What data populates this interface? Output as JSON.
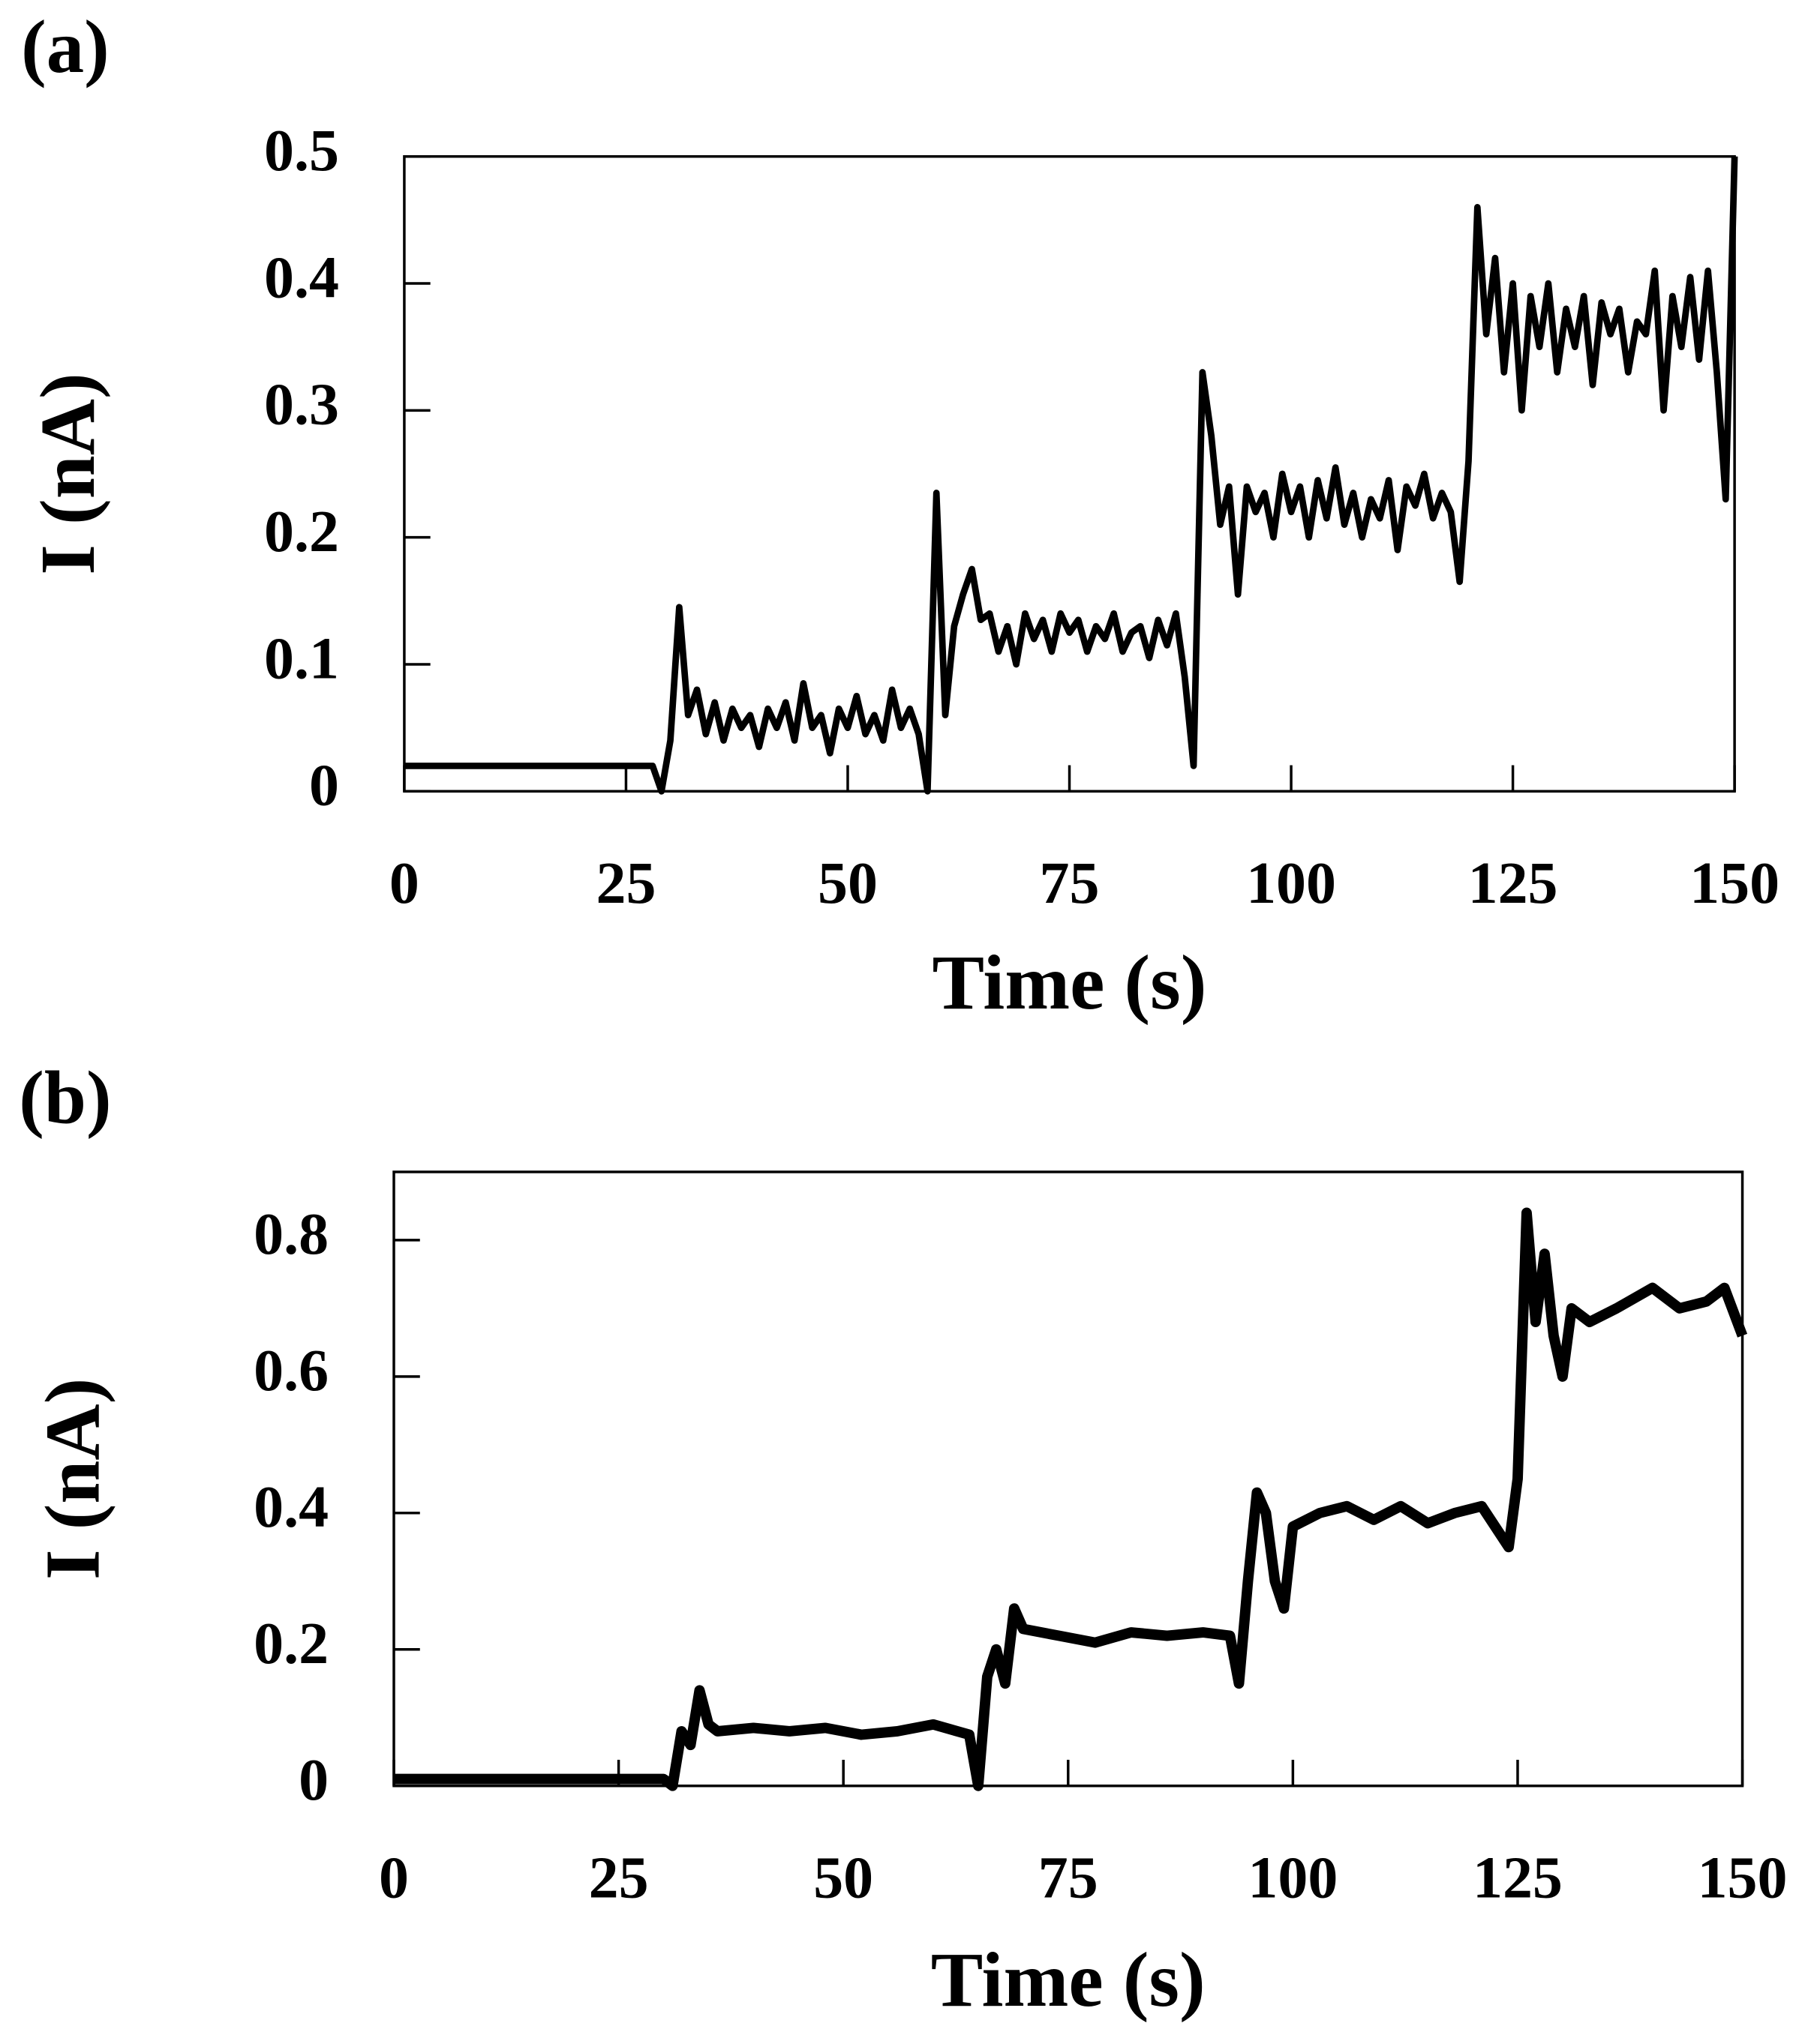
{
  "chart_data": [
    {
      "type": "line",
      "panel_label": "(a)",
      "x_label": "Time (s)",
      "y_label": "I (nA)",
      "xlim": [
        0,
        150
      ],
      "ylim": [
        0,
        0.5
      ],
      "xticks": [
        0,
        25,
        50,
        75,
        100,
        125,
        150
      ],
      "yticks": [
        0,
        0.1,
        0.2,
        0.3,
        0.4,
        0.5
      ],
      "color": "#000000",
      "x": [
        0,
        28,
        29,
        30,
        31,
        32,
        33,
        34,
        35,
        36,
        37,
        38,
        39,
        40,
        41,
        42,
        43,
        44,
        45,
        46,
        47,
        48,
        49,
        50,
        51,
        52,
        53,
        54,
        55,
        56,
        57,
        58,
        59,
        60,
        61,
        62,
        63,
        64,
        65,
        66,
        67,
        68,
        69,
        70,
        71,
        72,
        73,
        74,
        75,
        76,
        77,
        78,
        79,
        80,
        81,
        82,
        83,
        84,
        85,
        86,
        87,
        88,
        89,
        90,
        91,
        92,
        93,
        94,
        95,
        96,
        97,
        98,
        99,
        100,
        101,
        102,
        103,
        104,
        105,
        106,
        107,
        108,
        109,
        110,
        111,
        112,
        113,
        114,
        115,
        116,
        117,
        118,
        119,
        120,
        121,
        122,
        123,
        124,
        125,
        126,
        127,
        128,
        129,
        130,
        131,
        132,
        133,
        134,
        135,
        136,
        137,
        138,
        139,
        140,
        141,
        142,
        143,
        144,
        145,
        146,
        147,
        148,
        149,
        150
      ],
      "values": [
        0.02,
        0.02,
        0.0,
        0.04,
        0.145,
        0.06,
        0.08,
        0.045,
        0.07,
        0.04,
        0.065,
        0.05,
        0.06,
        0.035,
        0.065,
        0.05,
        0.07,
        0.04,
        0.085,
        0.05,
        0.06,
        0.03,
        0.065,
        0.05,
        0.075,
        0.045,
        0.06,
        0.04,
        0.08,
        0.05,
        0.065,
        0.045,
        0.0,
        0.235,
        0.06,
        0.13,
        0.155,
        0.175,
        0.135,
        0.14,
        0.11,
        0.13,
        0.1,
        0.14,
        0.12,
        0.135,
        0.11,
        0.14,
        0.125,
        0.135,
        0.11,
        0.13,
        0.12,
        0.14,
        0.11,
        0.125,
        0.13,
        0.105,
        0.135,
        0.115,
        0.14,
        0.09,
        0.02,
        0.33,
        0.28,
        0.21,
        0.24,
        0.155,
        0.24,
        0.22,
        0.235,
        0.2,
        0.25,
        0.22,
        0.24,
        0.2,
        0.245,
        0.215,
        0.255,
        0.21,
        0.235,
        0.2,
        0.23,
        0.215,
        0.245,
        0.19,
        0.24,
        0.225,
        0.25,
        0.215,
        0.235,
        0.22,
        0.165,
        0.26,
        0.46,
        0.36,
        0.42,
        0.33,
        0.4,
        0.3,
        0.39,
        0.35,
        0.4,
        0.33,
        0.38,
        0.35,
        0.39,
        0.32,
        0.385,
        0.36,
        0.38,
        0.33,
        0.37,
        0.36,
        0.41,
        0.3,
        0.39,
        0.35,
        0.405,
        0.34,
        0.41,
        0.33,
        0.23,
        0.5
      ]
    },
    {
      "type": "line",
      "panel_label": "(b)",
      "x_label": "Time (s)",
      "y_label": "I (nA)",
      "xlim": [
        0,
        150
      ],
      "ylim": [
        0,
        0.9
      ],
      "xticks": [
        0,
        25,
        50,
        75,
        100,
        125,
        150
      ],
      "yticks": [
        0,
        0.2,
        0.4,
        0.6,
        0.8
      ],
      "color": "#000000",
      "x": [
        0,
        30,
        31,
        32,
        33,
        34,
        35,
        36,
        40,
        44,
        48,
        52,
        56,
        60,
        64,
        65,
        66,
        67,
        68,
        69,
        70,
        74,
        78,
        82,
        86,
        90,
        93,
        94,
        95,
        96,
        97,
        98,
        99,
        100,
        103,
        106,
        109,
        112,
        115,
        118,
        121,
        124,
        125,
        126,
        127,
        128,
        129,
        130,
        131,
        133,
        136,
        140,
        143,
        146,
        148,
        150
      ],
      "values": [
        0.01,
        0.01,
        0,
        0.08,
        0.06,
        0.14,
        0.09,
        0.08,
        0.085,
        0.08,
        0.085,
        0.075,
        0.08,
        0.09,
        0.075,
        0,
        0.16,
        0.2,
        0.15,
        0.26,
        0.23,
        0.22,
        0.21,
        0.225,
        0.22,
        0.225,
        0.22,
        0.15,
        0.3,
        0.43,
        0.4,
        0.3,
        0.26,
        0.38,
        0.4,
        0.41,
        0.39,
        0.41,
        0.385,
        0.4,
        0.41,
        0.35,
        0.45,
        0.84,
        0.68,
        0.78,
        0.66,
        0.6,
        0.7,
        0.68,
        0.7,
        0.73,
        0.7,
        0.71,
        0.73,
        0.66
      ]
    }
  ]
}
